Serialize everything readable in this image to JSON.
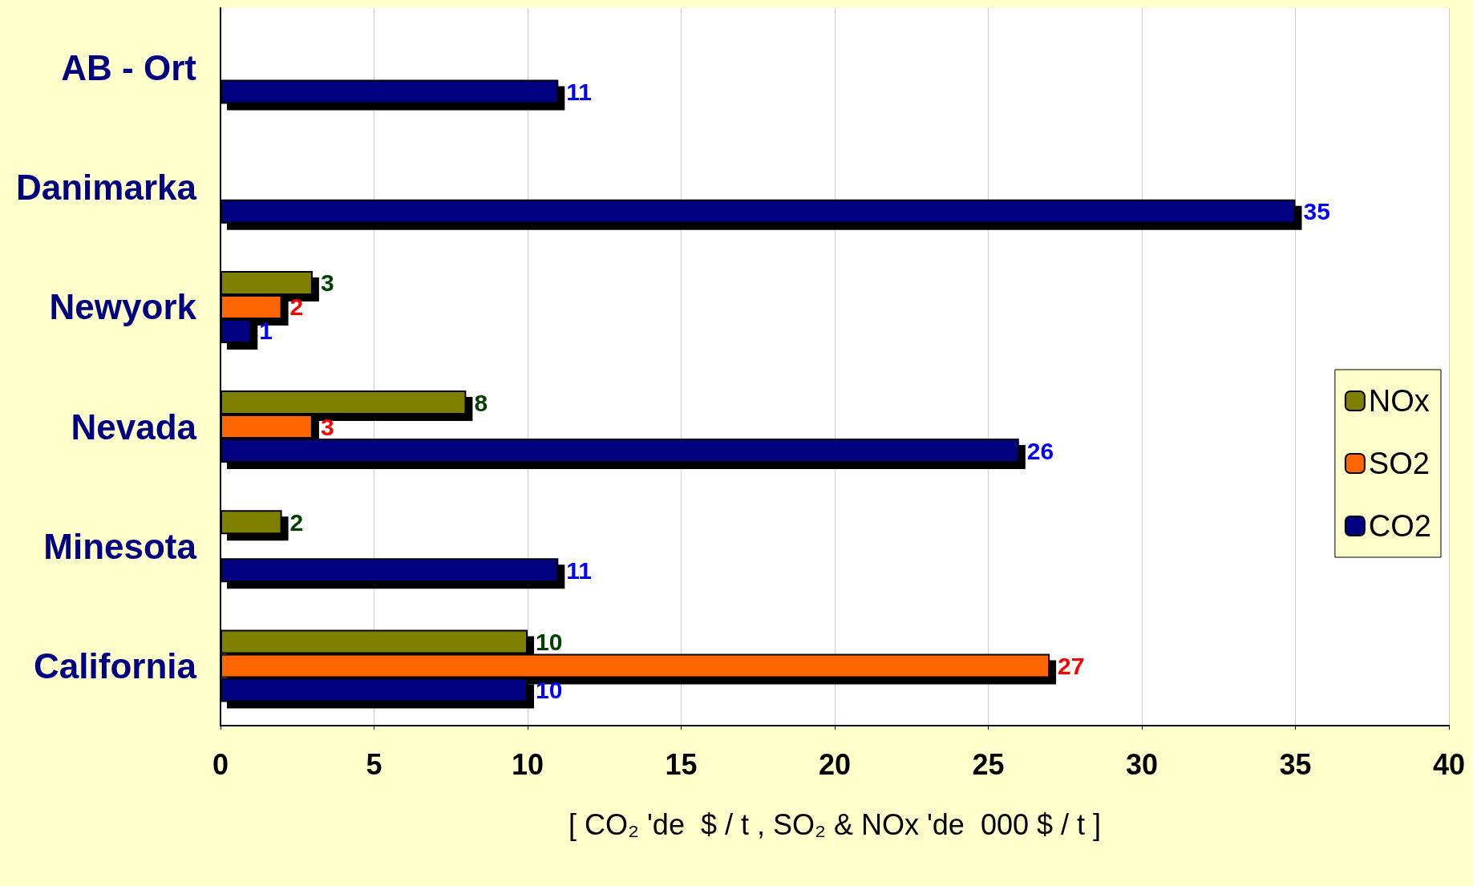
{
  "chart_data": {
    "type": "bar",
    "orientation": "horizontal",
    "xlabel": "[ CO₂ 'de  $ / t , SO₂ & NOx 'de  000 $ / t ]",
    "categories": [
      "AB - Ort",
      "Danimarka",
      "Newyork",
      "Nevada",
      "Minesota",
      "California"
    ],
    "series": [
      {
        "name": "NOx",
        "color": "#808000",
        "values": [
          null,
          null,
          3,
          8,
          2,
          10
        ]
      },
      {
        "name": "SO2",
        "color": "#ff6600",
        "values": [
          null,
          null,
          2,
          3,
          null,
          27
        ]
      },
      {
        "name": "CO2",
        "color": "#000080",
        "values": [
          11,
          35,
          1,
          26,
          11,
          10
        ]
      }
    ],
    "xlim": [
      0,
      40
    ],
    "xticks": [
      0,
      5,
      10,
      15,
      20,
      25,
      30,
      35,
      40
    ],
    "grid": "x",
    "legend": "bottom right",
    "data_labels": true
  }
}
